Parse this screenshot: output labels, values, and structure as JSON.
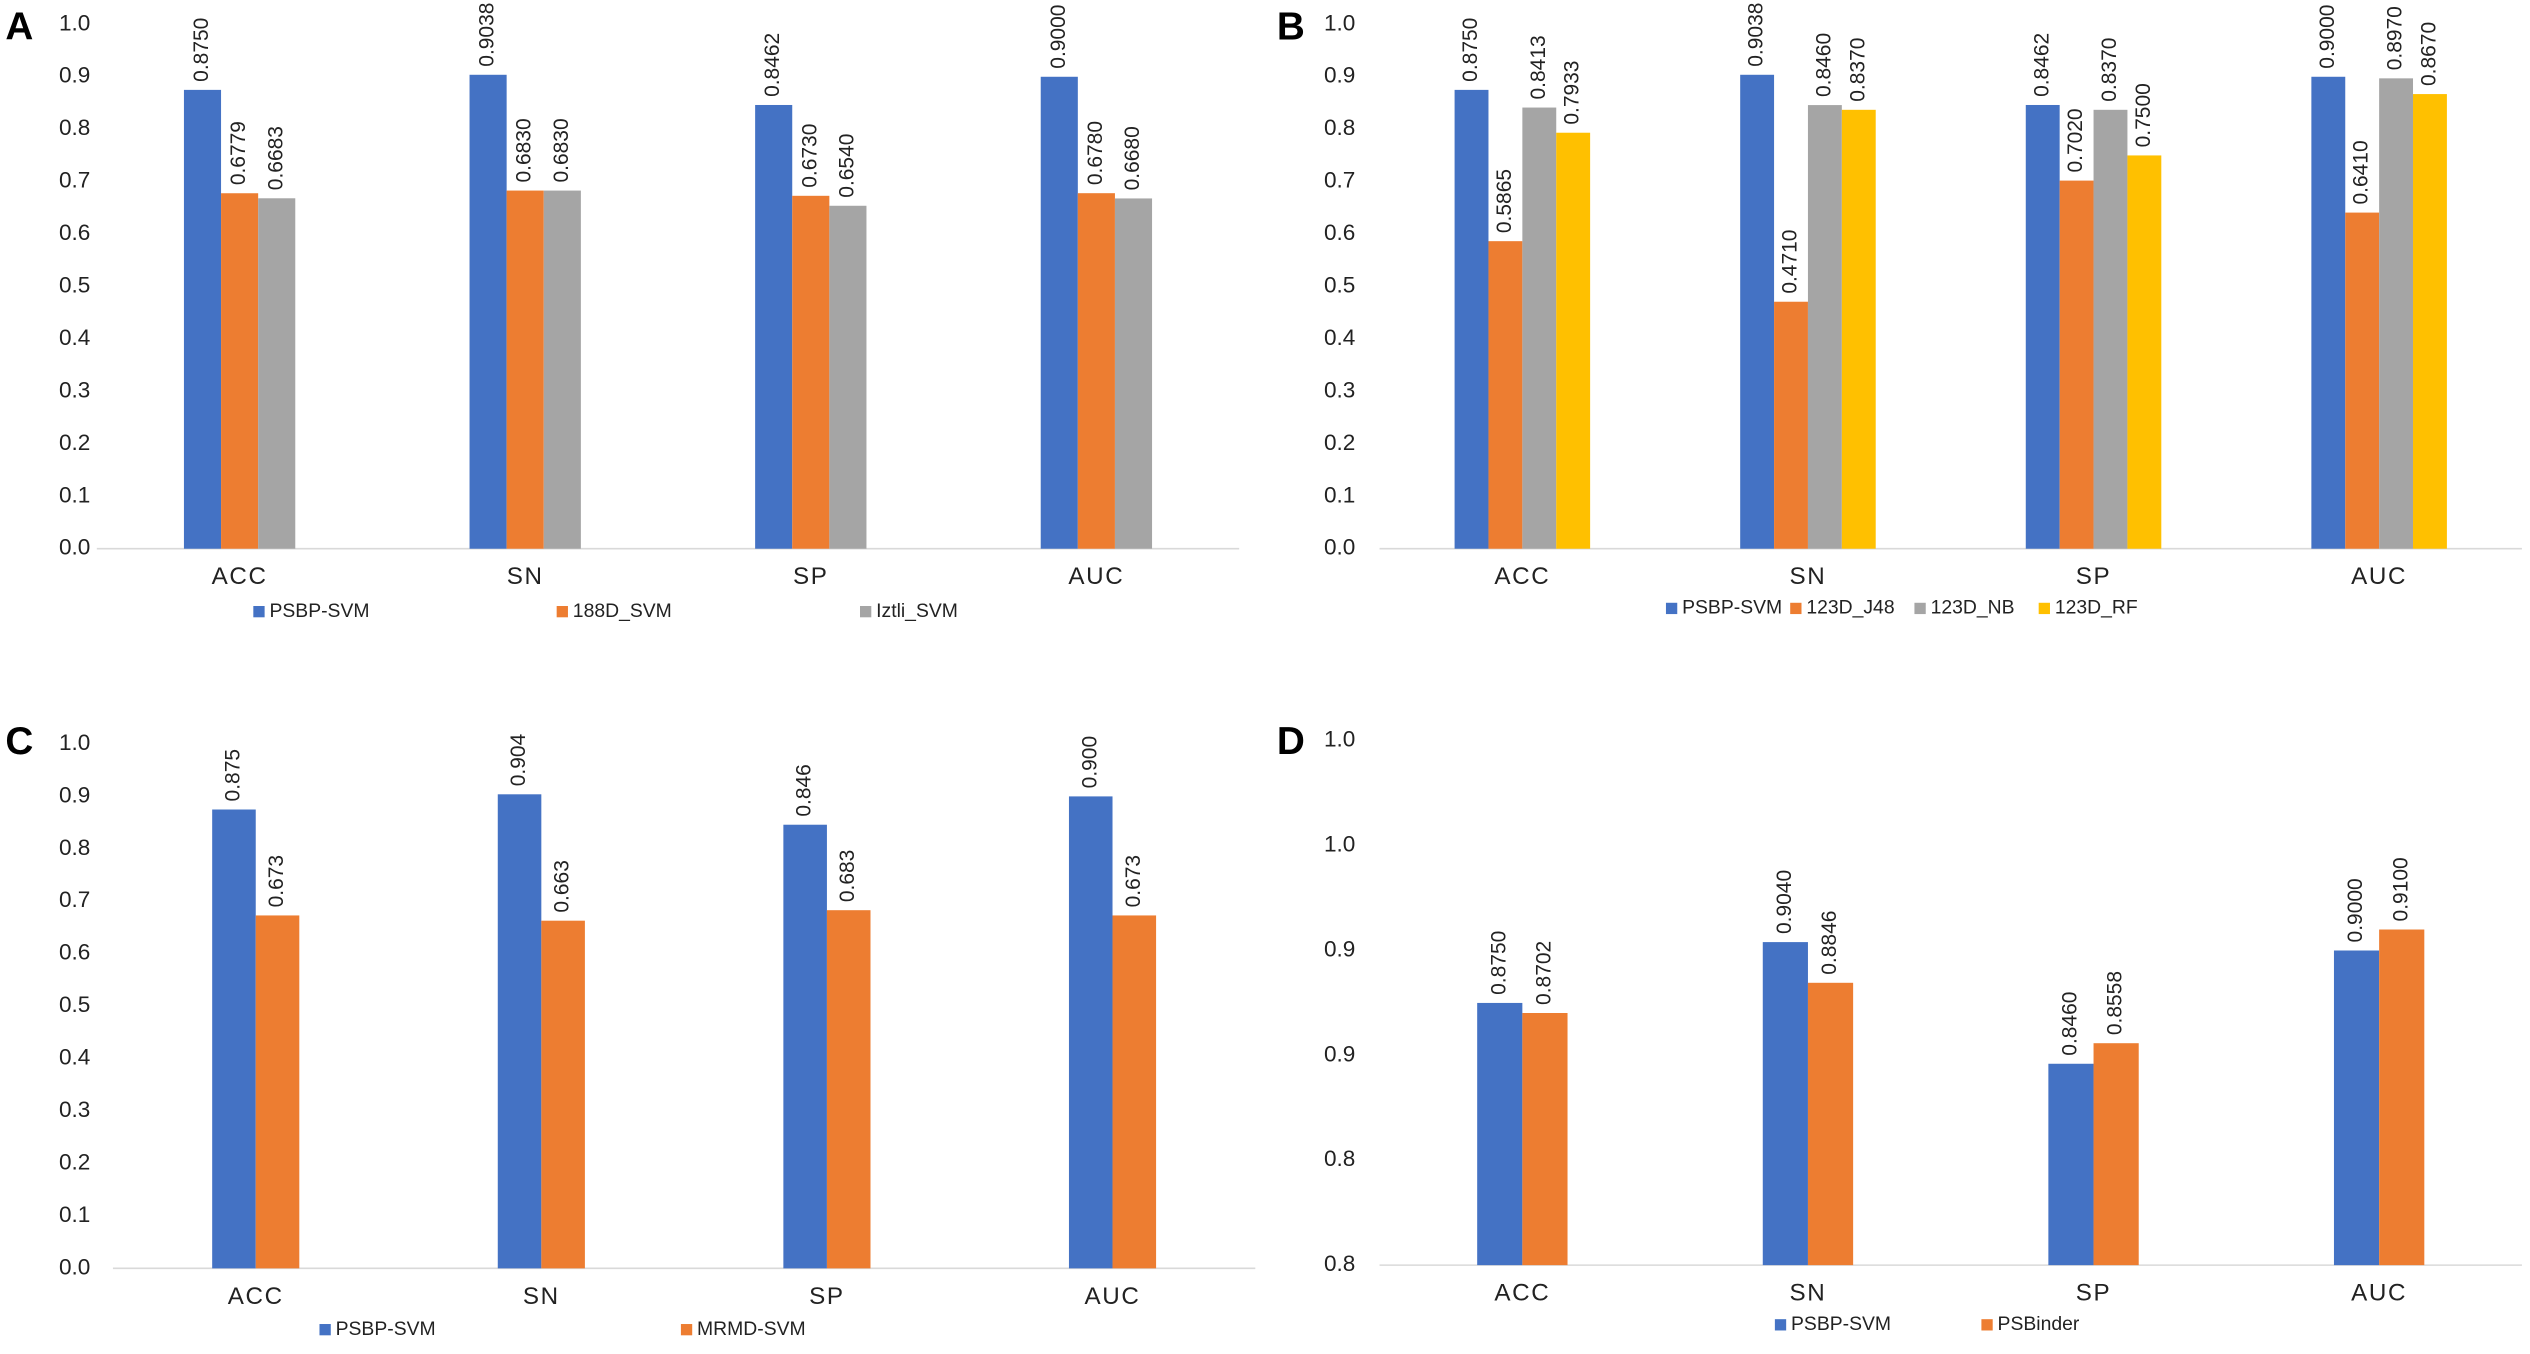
{
  "chart_data": [
    {
      "type": "bar",
      "panel": "A",
      "categories": [
        "ACC",
        "SN",
        "SP",
        "AUC"
      ],
      "series": [
        {
          "name": "PSBP-SVM",
          "color": "#4472c4",
          "values": [
            0.875,
            0.9038,
            0.8462,
            0.9
          ],
          "value_labels": [
            "0.8750",
            "0.9038",
            "0.8462",
            "0.9000"
          ]
        },
        {
          "name": "188D_SVM",
          "color": "#ed7d31",
          "values": [
            0.6779,
            0.683,
            0.673,
            0.678
          ],
          "value_labels": [
            "0.6779",
            "0.6830",
            "0.6730",
            "0.6780"
          ]
        },
        {
          "name": "Iztli_SVM",
          "color": "#a5a5a5",
          "values": [
            0.6683,
            0.683,
            0.654,
            0.668
          ],
          "value_labels": [
            "0.6683",
            "0.6830",
            "0.6540",
            "0.6680"
          ]
        }
      ],
      "ylim": [
        0,
        1
      ],
      "yticks": [
        {
          "value": 0,
          "label": "0.0"
        },
        0.1,
        0.2,
        0.3,
        0.4,
        0.5,
        0.6,
        0.7,
        0.8,
        0.9,
        {
          "value": 1,
          "label": "1.0"
        }
      ],
      "grid": false
    },
    {
      "type": "bar",
      "panel": "B",
      "categories": [
        "ACC",
        "SN",
        "SP",
        "AUC"
      ],
      "series": [
        {
          "name": "PSBP-SVM",
          "color": "#4472c4",
          "values": [
            0.875,
            0.9038,
            0.8462,
            0.9
          ],
          "value_labels": [
            "0.8750",
            "0.9038",
            "0.8462",
            "0.9000"
          ]
        },
        {
          "name": "123D_J48",
          "color": "#ed7d31",
          "values": [
            0.5865,
            0.471,
            0.702,
            0.641
          ],
          "value_labels": [
            "0.5865",
            "0.4710",
            "0.7020",
            "0.6410"
          ]
        },
        {
          "name": "123D_NB",
          "color": "#a5a5a5",
          "values": [
            0.8413,
            0.846,
            0.837,
            0.897
          ],
          "value_labels": [
            "0.8413",
            "0.8460",
            "0.8370",
            "0.8970"
          ]
        },
        {
          "name": "123D_RF",
          "color": "#ffc000",
          "values": [
            0.7933,
            0.837,
            0.75,
            0.867
          ],
          "value_labels": [
            "0.7933",
            "0.8370",
            "0.7500",
            "0.8670"
          ]
        }
      ],
      "ylim": [
        0,
        1
      ],
      "yticks": [
        {
          "value": 0,
          "label": "0.0"
        },
        0.1,
        0.2,
        0.3,
        0.4,
        0.5,
        0.6,
        0.7,
        0.8,
        0.9,
        {
          "value": 1,
          "label": "1.0"
        }
      ],
      "grid": false
    },
    {
      "type": "bar",
      "panel": "C",
      "categories": [
        "ACC",
        "SN",
        "SP",
        "AUC"
      ],
      "series": [
        {
          "name": "PSBP-SVM",
          "color": "#4472c4",
          "values": [
            0.875,
            0.904,
            0.846,
            0.9
          ],
          "value_labels": [
            "0.875",
            "0.904",
            "0.846",
            "0.900"
          ]
        },
        {
          "name": "MRMD-SVM",
          "color": "#ed7d31",
          "values": [
            0.673,
            0.663,
            0.683,
            0.673
          ],
          "value_labels": [
            "0.673",
            "0.663",
            "0.683",
            "0.673"
          ]
        }
      ],
      "ylim": [
        0,
        1
      ],
      "yticks": [
        {
          "value": 0,
          "label": "0.0"
        },
        0.1,
        0.2,
        0.3,
        0.4,
        0.5,
        0.6,
        0.7,
        0.8,
        0.9,
        {
          "value": 1,
          "label": "1.0"
        }
      ],
      "grid": false
    },
    {
      "type": "bar",
      "panel": "D",
      "categories": [
        "ACC",
        "SN",
        "SP",
        "AUC"
      ],
      "series": [
        {
          "name": "PSBP-SVM",
          "color": "#4472c4",
          "values": [
            0.875,
            0.904,
            0.846,
            0.9
          ],
          "value_labels": [
            "0.8750",
            "0.9040",
            "0.8460",
            "0.9000"
          ]
        },
        {
          "name": "PSBinder",
          "color": "#ed7d31",
          "values": [
            0.8702,
            0.8846,
            0.8558,
            0.91
          ],
          "value_labels": [
            "0.8702",
            "0.8846",
            "0.8558",
            "0.9100"
          ]
        }
      ],
      "ylim": [
        0.75,
        1
      ],
      "yticks": [
        {
          "value": 0.75,
          "label": "0.8"
        },
        0.8,
        {
          "value": 0.85,
          "label": "0.9"
        },
        0.9,
        {
          "value": 0.95,
          "label": "1.0"
        },
        {
          "value": 1,
          "label": "1.0"
        }
      ],
      "grid": false
    }
  ]
}
